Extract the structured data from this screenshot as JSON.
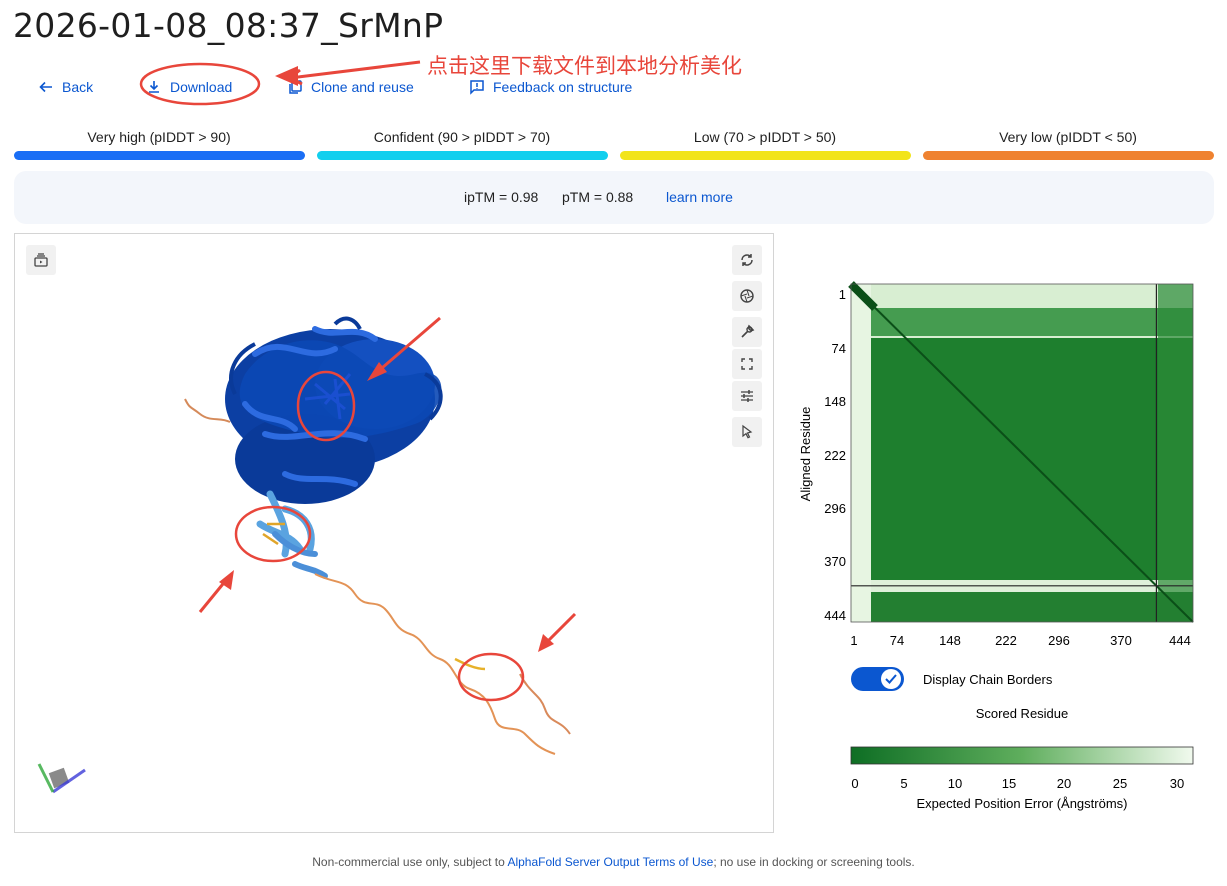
{
  "header": {
    "title": "2026-01-08_08:37_SrMnP"
  },
  "actions": {
    "back": "Back",
    "download": "Download",
    "clone": "Clone and reuse",
    "feedback": "Feedback on structure"
  },
  "annotation": {
    "text": "点击这里下载文件到本地分析美化",
    "color": "#e8463b"
  },
  "plddt_legend": [
    {
      "label": "Very high (pIDDT > 90)",
      "color": "#1a6ef5"
    },
    {
      "label": "Confident (90 > pIDDT > 70)",
      "color": "#12cfee"
    },
    {
      "label": "Low (70 > pIDDT > 50)",
      "color": "#f2e41a"
    },
    {
      "label": "Very low (pIDDT < 50)",
      "color": "#ef8230"
    }
  ],
  "metrics": {
    "iptm": "ipTM = 0.98",
    "ptm": "pTM = 0.88",
    "learn_more": "learn more"
  },
  "viewer": {
    "icons": [
      "layers-play-icon",
      "rotate-icon",
      "aperture-icon",
      "wrench-icon",
      "fullscreen-icon",
      "tune-icon",
      "cursor-icon"
    ]
  },
  "pae": {
    "y_axis_label": "Aligned Residue",
    "x_axis_label": "Scored Residue",
    "ticks": [
      "1",
      "74",
      "148",
      "222",
      "296",
      "370",
      "444"
    ],
    "chain_border_fraction": 0.893,
    "colorbar_ticks": [
      "0",
      "5",
      "10",
      "15",
      "20",
      "25",
      "30"
    ],
    "colorbar_label": "Expected Position Error (Ångströms)",
    "colorbar_low": "#0e6e24",
    "colorbar_high": "#f1faee",
    "toggle_label": "Display Chain Borders",
    "toggle_on": true
  },
  "footer": {
    "prefix": "Non-commercial use only, subject to ",
    "link": "AlphaFold Server Output Terms of Use",
    "suffix": "; no use in docking or screening tools."
  }
}
